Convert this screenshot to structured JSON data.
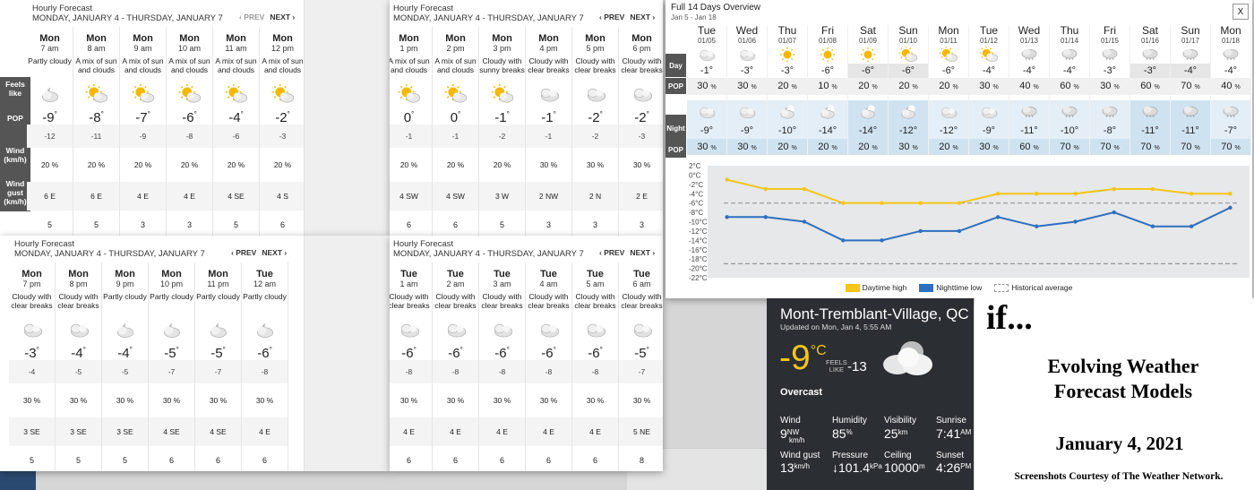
{
  "hourly_windows": [
    {
      "title": "Hourly Forecast",
      "date_range": "MONDAY, JANUARY 4 - THURSDAY, JANUARY 7",
      "prev_label": "‹ PREV",
      "next_label": "NEXT ›",
      "prev_disabled": true,
      "row_labels": [
        "Feels like",
        "POP",
        "Wind (km/h)",
        "Wind gust (km/h)"
      ],
      "hours": [
        {
          "day": "Mon",
          "time": "7 am",
          "condition": "Partly cloudy",
          "icon": "partly-cloudy-icon",
          "temp": "-9",
          "feels": "-12",
          "pop": "20 %",
          "wind": "6 E",
          "gust": "5"
        },
        {
          "day": "Mon",
          "time": "8 am",
          "condition": "A mix of sun and clouds",
          "icon": "sun-cloud-icon",
          "temp": "-8",
          "feels": "-11",
          "pop": "20 %",
          "wind": "6 E",
          "gust": "5"
        },
        {
          "day": "Mon",
          "time": "9 am",
          "condition": "A mix of sun and clouds",
          "icon": "sun-cloud-icon",
          "temp": "-7",
          "feels": "-9",
          "pop": "20 %",
          "wind": "4 E",
          "gust": "3"
        },
        {
          "day": "Mon",
          "time": "10 am",
          "condition": "A mix of sun and clouds",
          "icon": "sun-cloud-icon",
          "temp": "-6",
          "feels": "-8",
          "pop": "20 %",
          "wind": "4 E",
          "gust": "3"
        },
        {
          "day": "Mon",
          "time": "11 am",
          "condition": "A mix of sun and clouds",
          "icon": "sun-cloud-icon",
          "temp": "-4",
          "feels": "-6",
          "pop": "20 %",
          "wind": "4 SE",
          "gust": "5"
        },
        {
          "day": "Mon",
          "time": "12 pm",
          "condition": "A mix of sun and clouds",
          "icon": "sun-cloud-icon",
          "temp": "-2",
          "feels": "-3",
          "pop": "20 %",
          "wind": "4 S",
          "gust": "6"
        }
      ]
    },
    {
      "title": "Hourly Forecast",
      "date_range": "MONDAY, JANUARY 4 - THURSDAY, JANUARY 7",
      "prev_label": "‹ PREV",
      "next_label": "NEXT ›",
      "prev_disabled": false,
      "row_labels": [],
      "hours": [
        {
          "day": "Mon",
          "time": "1 pm",
          "condition": "A mix of sun and clouds",
          "icon": "sun-cloud-icon",
          "temp": "0",
          "feels": "-1",
          "pop": "20 %",
          "wind": "4 SW",
          "gust": "6"
        },
        {
          "day": "Mon",
          "time": "2 pm",
          "condition": "A mix of sun and clouds",
          "icon": "sun-cloud-icon",
          "temp": "0",
          "feels": "-1",
          "pop": "20 %",
          "wind": "4 SW",
          "gust": "6"
        },
        {
          "day": "Mon",
          "time": "3 pm",
          "condition": "Cloudy with sunny breaks",
          "icon": "sun-cloud-icon",
          "temp": "-1",
          "feels": "-2",
          "pop": "20 %",
          "wind": "3 W",
          "gust": "5"
        },
        {
          "day": "Mon",
          "time": "4 pm",
          "condition": "Cloudy with clear breaks",
          "icon": "cloud-icon",
          "temp": "-1",
          "feels": "-1",
          "pop": "30 %",
          "wind": "2 NW",
          "gust": "3"
        },
        {
          "day": "Mon",
          "time": "5 pm",
          "condition": "Cloudy with clear breaks",
          "icon": "cloud-icon",
          "temp": "-2",
          "feels": "-2",
          "pop": "30 %",
          "wind": "2 N",
          "gust": "3"
        },
        {
          "day": "Mon",
          "time": "6 pm",
          "condition": "Cloudy with clear breaks",
          "icon": "cloud-icon",
          "temp": "-2",
          "feels": "-3",
          "pop": "30 %",
          "wind": "2 E",
          "gust": "3"
        }
      ]
    },
    {
      "title": "Hourly Forecast",
      "date_range": "MONDAY, JANUARY 4 - THURSDAY, JANUARY 7",
      "prev_label": "‹ PREV",
      "next_label": "NEXT ›",
      "prev_disabled": false,
      "row_labels": [],
      "hours": [
        {
          "day": "Mon",
          "time": "7 pm",
          "condition": "Cloudy with clear breaks",
          "icon": "cloud-icon",
          "temp": "-3",
          "feels": "-4",
          "pop": "30 %",
          "wind": "3 SE",
          "gust": "5"
        },
        {
          "day": "Mon",
          "time": "8 pm",
          "condition": "Cloudy with clear breaks",
          "icon": "cloud-icon",
          "temp": "-4",
          "feels": "-5",
          "pop": "30 %",
          "wind": "3 SE",
          "gust": "5"
        },
        {
          "day": "Mon",
          "time": "9 pm",
          "condition": "Partly cloudy",
          "icon": "partly-cloudy-night-icon",
          "temp": "-4",
          "feels": "-5",
          "pop": "30 %",
          "wind": "3 SE",
          "gust": "5"
        },
        {
          "day": "Mon",
          "time": "10 pm",
          "condition": "Partly cloudy",
          "icon": "partly-cloudy-night-icon",
          "temp": "-5",
          "feels": "-7",
          "pop": "30 %",
          "wind": "4 SE",
          "gust": "6"
        },
        {
          "day": "Mon",
          "time": "11 pm",
          "condition": "Partly cloudy",
          "icon": "partly-cloudy-night-icon",
          "temp": "-5",
          "feels": "-7",
          "pop": "30 %",
          "wind": "4 SE",
          "gust": "6"
        },
        {
          "day": "Tue",
          "time": "12 am",
          "condition": "Partly cloudy",
          "icon": "partly-cloudy-night-icon",
          "temp": "-6",
          "feels": "-8",
          "pop": "30 %",
          "wind": "4 E",
          "gust": "6"
        }
      ]
    },
    {
      "title": "Hourly Forecast",
      "date_range": "MONDAY, JANUARY 4 - THURSDAY, JANUARY 7",
      "prev_label": "‹ PREV",
      "next_label": "NEXT ›",
      "prev_disabled": false,
      "row_labels": [],
      "hours": [
        {
          "day": "Tue",
          "time": "1 am",
          "condition": "Cloudy with clear breaks",
          "icon": "cloud-icon",
          "temp": "-6",
          "feels": "-8",
          "pop": "30 %",
          "wind": "4 E",
          "gust": "6"
        },
        {
          "day": "Tue",
          "time": "2 am",
          "condition": "Cloudy with clear breaks",
          "icon": "cloud-icon",
          "temp": "-6",
          "feels": "-8",
          "pop": "30 %",
          "wind": "4 E",
          "gust": "6"
        },
        {
          "day": "Tue",
          "time": "3 am",
          "condition": "Cloudy with clear breaks",
          "icon": "cloud-icon",
          "temp": "-6",
          "feels": "-8",
          "pop": "30 %",
          "wind": "4 E",
          "gust": "6"
        },
        {
          "day": "Tue",
          "time": "4 am",
          "condition": "Cloudy with clear breaks",
          "icon": "cloud-icon",
          "temp": "-6",
          "feels": "-8",
          "pop": "30 %",
          "wind": "4 E",
          "gust": "6"
        },
        {
          "day": "Tue",
          "time": "5 am",
          "condition": "Cloudy with clear breaks",
          "icon": "cloud-icon",
          "temp": "-6",
          "feels": "-8",
          "pop": "30 %",
          "wind": "4 E",
          "gust": "6"
        },
        {
          "day": "Tue",
          "time": "6 am",
          "condition": "Cloudy with clear breaks",
          "icon": "cloud-icon",
          "temp": "-5",
          "feels": "-7",
          "pop": "30 %",
          "wind": "5 NE",
          "gust": "8"
        }
      ]
    }
  ],
  "fourteen_day": {
    "title": "Full 14 Days Overview",
    "range": "Jan 5 - Jan 18",
    "close_label": "X",
    "day_tag": "Day",
    "night_tag": "Night",
    "pop_tag": "POP",
    "days": [
      {
        "name": "Tue",
        "date": "01/05",
        "day_icon": "cloud-icon",
        "high": "-1°",
        "day_pop": "30",
        "night_icon": "cloud-icon",
        "low": "-9°",
        "night_pop": "30"
      },
      {
        "name": "Wed",
        "date": "01/06",
        "day_icon": "cloud-icon",
        "high": "-3°",
        "day_pop": "30",
        "night_icon": "cloud-icon",
        "low": "-9°",
        "night_pop": "30"
      },
      {
        "name": "Thu",
        "date": "01/07",
        "day_icon": "sun-icon",
        "high": "-3°",
        "day_pop": "20",
        "night_icon": "moon-cloud-icon",
        "low": "-10°",
        "night_pop": "20"
      },
      {
        "name": "Fri",
        "date": "01/08",
        "day_icon": "sun-icon",
        "high": "-6°",
        "day_pop": "10",
        "night_icon": "moon-cloud-icon",
        "low": "-14°",
        "night_pop": "20"
      },
      {
        "name": "Sat",
        "date": "01/09",
        "day_icon": "sun-icon",
        "high": "-6°",
        "day_pop": "20",
        "night_icon": "moon-cloud-icon",
        "low": "-14°",
        "night_pop": "20"
      },
      {
        "name": "Sun",
        "date": "01/10",
        "day_icon": "sun-cloud-icon",
        "high": "-6°",
        "day_pop": "20",
        "night_icon": "moon-cloud-icon",
        "low": "-12°",
        "night_pop": "30"
      },
      {
        "name": "Mon",
        "date": "01/11",
        "day_icon": "sun-cloud-icon",
        "high": "-6°",
        "day_pop": "20",
        "night_icon": "cloud-icon",
        "low": "-12°",
        "night_pop": "20"
      },
      {
        "name": "Tue",
        "date": "01/12",
        "day_icon": "sun-cloud-icon",
        "high": "-4°",
        "day_pop": "30",
        "night_icon": "cloud-icon",
        "low": "-9°",
        "night_pop": "30"
      },
      {
        "name": "Wed",
        "date": "01/13",
        "day_icon": "snow-cloud-icon",
        "high": "-4°",
        "day_pop": "40",
        "night_icon": "snow-cloud-icon",
        "low": "-11°",
        "night_pop": "60"
      },
      {
        "name": "Thu",
        "date": "01/14",
        "day_icon": "snow-cloud-icon",
        "high": "-4°",
        "day_pop": "60",
        "night_icon": "snow-cloud-icon",
        "low": "-10°",
        "night_pop": "70"
      },
      {
        "name": "Fri",
        "date": "01/15",
        "day_icon": "snow-cloud-icon",
        "high": "-3°",
        "day_pop": "30",
        "night_icon": "snow-cloud-icon",
        "low": "-8°",
        "night_pop": "70"
      },
      {
        "name": "Sat",
        "date": "01/16",
        "day_icon": "snow-cloud-icon",
        "high": "-3°",
        "day_pop": "60",
        "night_icon": "snow-cloud-icon",
        "low": "-11°",
        "night_pop": "70"
      },
      {
        "name": "Sun",
        "date": "01/17",
        "day_icon": "snow-cloud-icon",
        "high": "-4°",
        "day_pop": "70",
        "night_icon": "snow-cloud-icon",
        "low": "-11°",
        "night_pop": "70"
      },
      {
        "name": "Mon",
        "date": "01/18",
        "day_icon": "snow-cloud-icon",
        "high": "-4°",
        "day_pop": "40",
        "night_icon": "snow-cloud-icon",
        "low": "-7°",
        "night_pop": "70"
      }
    ]
  },
  "chart_data": {
    "type": "line",
    "x": [
      "01/05",
      "01/06",
      "01/07",
      "01/08",
      "01/09",
      "01/10",
      "01/11",
      "01/12",
      "01/13",
      "01/14",
      "01/15",
      "01/16",
      "01/17",
      "01/18"
    ],
    "series": [
      {
        "name": "Daytime high",
        "color": "#f5c518",
        "values": [
          -1,
          -3,
          -3,
          -6,
          -6,
          -6,
          -6,
          -4,
          -4,
          -4,
          -3,
          -3,
          -4,
          -4
        ]
      },
      {
        "name": "Nighttime low",
        "color": "#2f6fbf",
        "values": [
          -9,
          -9,
          -10,
          -14,
          -14,
          -12,
          -12,
          -9,
          -11,
          -10,
          -8,
          -11,
          -11,
          -7
        ]
      },
      {
        "name": "Historical average",
        "color": "#999999",
        "values_dashed": [
          -6,
          -19
        ]
      }
    ],
    "y_ticks": [
      "2°C",
      "0°C",
      "-2°C",
      "-4°C",
      "-6°C",
      "-8°C",
      "-10°C",
      "-12°C",
      "-14°C",
      "-16°C",
      "-18°C",
      "-20°C",
      "-22°C"
    ],
    "ylim": [
      -22,
      2
    ],
    "legend_position": "bottom"
  },
  "current": {
    "location": "Mont-Tremblant-Village, QC",
    "updated": "Updated on Mon, Jan 4, 5:55 AM",
    "temp": "-9",
    "unit": "°C",
    "feels_label_1": "FEELS",
    "feels_label_2": "LIKE",
    "feels_value": "-13",
    "condition": "Overcast",
    "wind_label": "Wind",
    "wind_value": "9",
    "wind_dir": "NW",
    "wind_unit": "km/h",
    "humidity_label": "Humidity",
    "humidity_value": "85",
    "humidity_unit": "%",
    "visibility_label": "Visibility",
    "visibility_value": "25",
    "visibility_unit": "km",
    "sunrise_label": "Sunrise",
    "sunrise_value": "7:41",
    "sunrise_unit": "AM",
    "gust_label": "Wind gust",
    "gust_value": "13",
    "gust_unit": "km/h",
    "pressure_label": "Pressure",
    "pressure_value": "↓101.4",
    "pressure_unit": "kPa",
    "ceiling_label": "Ceiling",
    "ceiling_value": "10000",
    "ceiling_unit": "m",
    "sunset_label": "Sunset",
    "sunset_value": "4:26",
    "sunset_unit": "PM"
  },
  "caption": {
    "if": "if...",
    "line1": "Evolving Weather",
    "line2": "Forecast Models",
    "date": "January 4, 2021",
    "credit": "Screenshots Courtesy of The Weather Network."
  }
}
